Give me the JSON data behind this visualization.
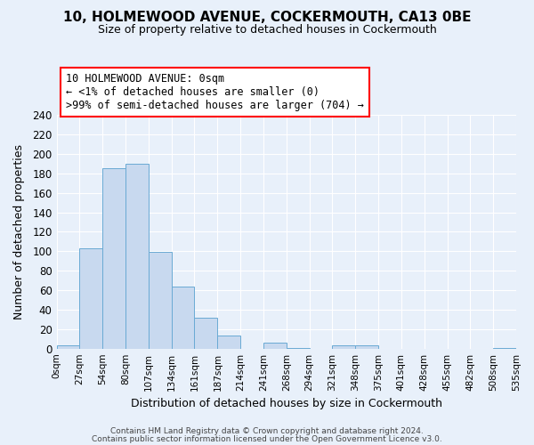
{
  "title": "10, HOLMEWOOD AVENUE, COCKERMOUTH, CA13 0BE",
  "subtitle": "Size of property relative to detached houses in Cockermouth",
  "xlabel": "Distribution of detached houses by size in Cockermouth",
  "ylabel": "Number of detached properties",
  "bar_color": "#c8d9ef",
  "bar_edge_color": "#6aaad4",
  "background_color": "#e8f0fa",
  "grid_color": "#ffffff",
  "bin_labels": [
    "0sqm",
    "27sqm",
    "54sqm",
    "80sqm",
    "107sqm",
    "134sqm",
    "161sqm",
    "187sqm",
    "214sqm",
    "241sqm",
    "268sqm",
    "294sqm",
    "321sqm",
    "348sqm",
    "375sqm",
    "401sqm",
    "428sqm",
    "455sqm",
    "482sqm",
    "508sqm",
    "535sqm"
  ],
  "bar_heights": [
    3,
    103,
    185,
    190,
    99,
    64,
    32,
    13,
    0,
    6,
    1,
    0,
    3,
    3,
    0,
    0,
    0,
    0,
    0,
    1
  ],
  "ylim": [
    0,
    240
  ],
  "yticks": [
    0,
    20,
    40,
    60,
    80,
    100,
    120,
    140,
    160,
    180,
    200,
    220,
    240
  ],
  "annotation_line1": "10 HOLMEWOOD AVENUE: 0sqm",
  "annotation_line2": "← <1% of detached houses are smaller (0)",
  "annotation_line3": ">99% of semi-detached houses are larger (704) →",
  "footer_line1": "Contains HM Land Registry data © Crown copyright and database right 2024.",
  "footer_line2": "Contains public sector information licensed under the Open Government Licence v3.0."
}
